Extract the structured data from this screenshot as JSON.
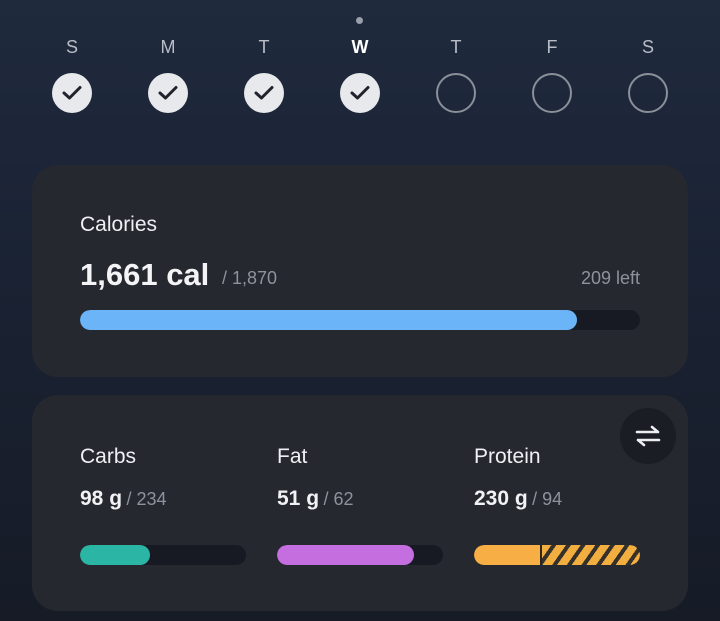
{
  "week": {
    "days": [
      {
        "letter": "S",
        "done": true,
        "current": false
      },
      {
        "letter": "M",
        "done": true,
        "current": false
      },
      {
        "letter": "T",
        "done": true,
        "current": false
      },
      {
        "letter": "W",
        "done": true,
        "current": true
      },
      {
        "letter": "T",
        "done": false,
        "current": false
      },
      {
        "letter": "F",
        "done": false,
        "current": false
      },
      {
        "letter": "S",
        "done": false,
        "current": false
      }
    ]
  },
  "calories": {
    "title": "Calories",
    "value": "1,661 cal",
    "goal": "/ 1,870",
    "left": "209 left",
    "progress": 0.888,
    "color": "#6cb4f8"
  },
  "macros": {
    "swap_icon": "swap-arrows-icon",
    "items": [
      {
        "name": "Carbs",
        "value": "98 g",
        "goal": "/ 234",
        "progress": 0.419,
        "over": 0,
        "color": "#2bb5a4"
      },
      {
        "name": "Fat",
        "value": "51 g",
        "goal": "/ 62",
        "progress": 0.823,
        "over": 0,
        "color": "#c56ee0"
      },
      {
        "name": "Protein",
        "value": "230 g",
        "goal": "/ 94",
        "progress": 0.41,
        "over": 0.59,
        "color": "#f6ae45"
      }
    ]
  }
}
